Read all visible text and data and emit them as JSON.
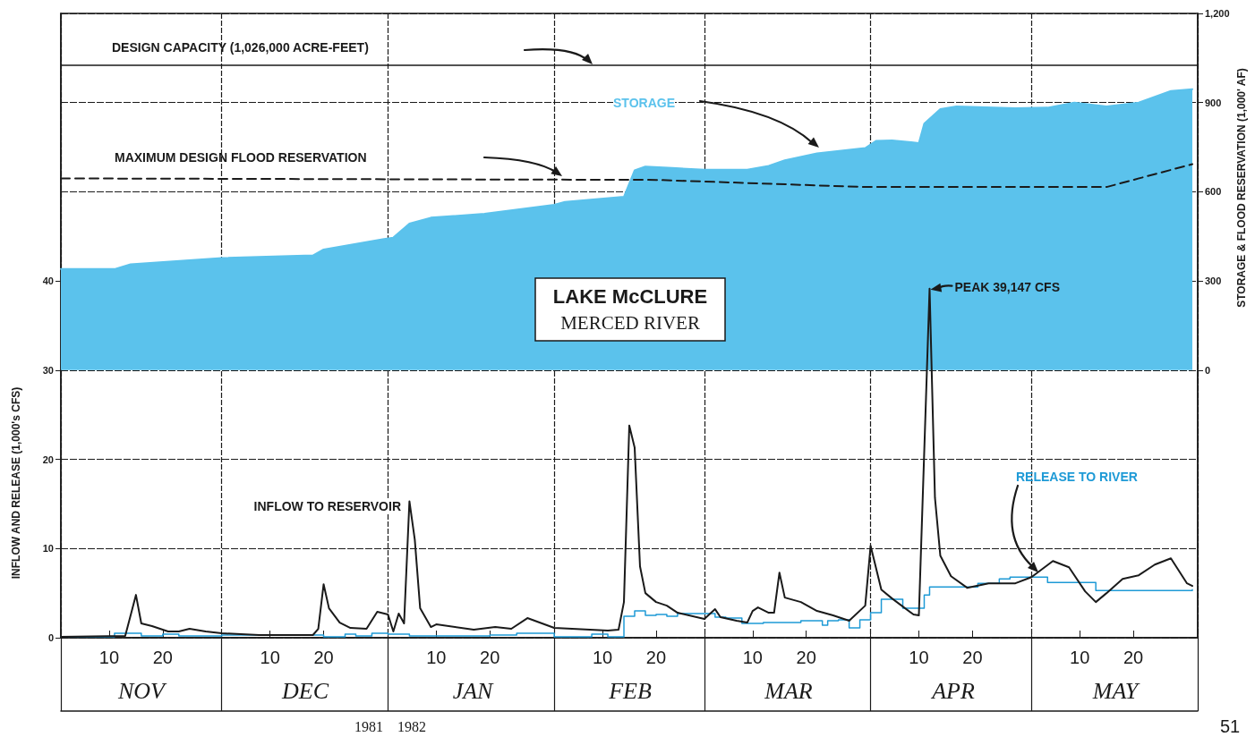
{
  "chart_data": {
    "type": "line",
    "title": "LAKE McCLURE",
    "subtitle": "MERCED RIVER",
    "ylabel": "INFLOW AND RELEASE (1,000's CFS)",
    "y2label": "STORAGE & FLOOD RESERVATION (1,000' AF)",
    "xlim": [
      "1981-11-01",
      "1982-06-01"
    ],
    "xticks": [
      {
        "value": "1981-11-01",
        "label": null
      },
      {
        "value": "1981-11-10",
        "label": "10"
      },
      {
        "value": "1981-11-20",
        "label": "20"
      },
      {
        "value": "1981-12-01",
        "label": null
      },
      {
        "value": "1981-12-10",
        "label": "10"
      },
      {
        "value": "1981-12-20",
        "label": "20"
      },
      {
        "value": "1982-01-01",
        "label": null
      },
      {
        "value": "1982-01-10",
        "label": "10"
      },
      {
        "value": "1982-01-20",
        "label": "20"
      },
      {
        "value": "1982-02-01",
        "label": null
      },
      {
        "value": "1982-02-10",
        "label": "10"
      },
      {
        "value": "1982-02-20",
        "label": "20"
      },
      {
        "value": "1982-03-01",
        "label": null
      },
      {
        "value": "1982-03-10",
        "label": "10"
      },
      {
        "value": "1982-03-20",
        "label": "20"
      },
      {
        "value": "1982-04-01",
        "label": null
      },
      {
        "value": "1982-04-10",
        "label": "10"
      },
      {
        "value": "1982-04-20",
        "label": "20"
      },
      {
        "value": "1982-05-01",
        "label": null
      },
      {
        "value": "1982-05-10",
        "label": "10"
      },
      {
        "value": "1982-05-20",
        "label": "20"
      },
      {
        "value": "1982-06-01",
        "label": null
      }
    ],
    "ylim": [
      0,
      70
    ],
    "yticks": [
      0,
      10,
      20,
      30,
      40
    ],
    "y2lim": [
      -900,
      1200
    ],
    "y2ticks": [
      0,
      300,
      600,
      900,
      {
        "value": 1200,
        "label": "1,200"
      }
    ],
    "grid": true,
    "legend": false,
    "marker": "none",
    "ref_lines": [
      {
        "axis": "y2",
        "value": 1026,
        "label": "DESIGN CAPACITY (1,026,000 ACRE-FEET)",
        "color": "#1a1a1a"
      }
    ],
    "series": [
      {
        "name": "STORAGE",
        "type": "area",
        "axis": "y2",
        "color": "#5bc2ec",
        "x": [
          "1981-11-01",
          "1981-11-11",
          "1981-11-14",
          "1981-12-01",
          "1981-12-18",
          "1981-12-20",
          "1981-12-31",
          "1982-01-02",
          "1982-01-05",
          "1982-01-09",
          "1982-01-19",
          "1982-02-01",
          "1982-02-03",
          "1982-02-14",
          "1982-02-16",
          "1982-02-18",
          "1982-02-23",
          "1982-03-01",
          "1982-03-09",
          "1982-03-13",
          "1982-03-16",
          "1982-03-22",
          "1982-03-31",
          "1982-04-02",
          "1982-04-05",
          "1982-04-10",
          "1982-04-11",
          "1982-04-14",
          "1982-04-17",
          "1982-04-28",
          "1982-05-04",
          "1982-05-09",
          "1982-05-15",
          "1982-05-21",
          "1982-05-27",
          "1982-05-31"
        ],
        "values": [
          340,
          340,
          356,
          377,
          386,
          406,
          440,
          446,
          493,
          513,
          526,
          556,
          566,
          583,
          672,
          685,
          680,
          674,
          674,
          687,
          706,
          729,
          747,
          771,
          773,
          764,
          829,
          878,
          887,
          881,
          883,
          900,
          887,
          900,
          939,
          945
        ]
      },
      {
        "name": "MAXIMUM DESIGN FLOOD RESERVATION",
        "axis": "y2",
        "color": "#1a1a1a",
        "line_style": "dashed",
        "x": [
          "1981-11-01",
          "1982-02-20",
          "1982-03-31",
          "1982-05-15",
          "1982-05-31"
        ],
        "values": [
          645,
          640,
          616,
          616,
          693
        ]
      },
      {
        "name": "RELEASE TO RIVER",
        "type": "step",
        "color": "#1e9ad6",
        "x": [
          "1981-11-01",
          "1981-11-11",
          "1981-11-16",
          "1981-11-20",
          "1981-11-23",
          "1981-12-01",
          "1981-12-20",
          "1981-12-24",
          "1981-12-26",
          "1981-12-29",
          "1982-01-01",
          "1982-01-05",
          "1982-01-20",
          "1982-01-25",
          "1982-02-01",
          "1982-02-08",
          "1982-02-11",
          "1982-02-14",
          "1982-02-16",
          "1982-02-18",
          "1982-02-20",
          "1982-02-22",
          "1982-02-24",
          "1982-03-03",
          "1982-03-05",
          "1982-03-08",
          "1982-03-12",
          "1982-03-19",
          "1982-03-23",
          "1982-03-24",
          "1982-03-26",
          "1982-03-28",
          "1982-03-30",
          "1982-04-01",
          "1982-04-03",
          "1982-04-07",
          "1982-04-11",
          "1982-04-12",
          "1982-04-21",
          "1982-04-25",
          "1982-04-27",
          "1982-05-04",
          "1982-05-13",
          "1982-05-31"
        ],
        "values": [
          0.1,
          0.5,
          0.2,
          0.4,
          0.2,
          0.3,
          0.1,
          0.4,
          0.2,
          0.5,
          0.4,
          0.2,
          0.3,
          0.5,
          0.1,
          0.4,
          0.1,
          2.4,
          3.0,
          2.5,
          2.6,
          2.4,
          2.7,
          2.3,
          2.2,
          1.6,
          1.7,
          1.9,
          1.4,
          1.9,
          2.0,
          1.1,
          2.0,
          2.8,
          4.3,
          3.3,
          4.8,
          5.7,
          6.1,
          6.6,
          6.8,
          6.2,
          5.3,
          5.4
        ]
      },
      {
        "name": "INFLOW TO RESERVOIR",
        "color": "#1a1a1a",
        "x": [
          "1981-11-01",
          "1981-11-13",
          "1981-11-15",
          "1981-11-16",
          "1981-11-18",
          "1981-11-21",
          "1981-11-23",
          "1981-11-25",
          "1981-11-28",
          "1981-12-01",
          "1981-12-08",
          "1981-12-18",
          "1981-12-19",
          "1981-12-20",
          "1981-12-21",
          "1981-12-23",
          "1981-12-25",
          "1981-12-28",
          "1981-12-30",
          "1982-01-01",
          "1982-01-02",
          "1982-01-03",
          "1982-01-04",
          "1982-01-05",
          "1982-01-06",
          "1982-01-07",
          "1982-01-09",
          "1982-01-10",
          "1982-01-17",
          "1982-01-21",
          "1982-01-24",
          "1982-01-27",
          "1982-02-01",
          "1982-02-11",
          "1982-02-13",
          "1982-02-14",
          "1982-02-15",
          "1982-02-16",
          "1982-02-17",
          "1982-02-18",
          "1982-02-20",
          "1982-02-22",
          "1982-02-24",
          "1982-03-01",
          "1982-03-03",
          "1982-03-04",
          "1982-03-07",
          "1982-03-09",
          "1982-03-10",
          "1982-03-11",
          "1982-03-13",
          "1982-03-14",
          "1982-03-15",
          "1982-03-16",
          "1982-03-19",
          "1982-03-22",
          "1982-03-25",
          "1982-03-28",
          "1982-03-31",
          "1982-04-01",
          "1982-04-03",
          "1982-04-05",
          "1982-04-09",
          "1982-04-10",
          "1982-04-12",
          "1982-04-13",
          "1982-04-14",
          "1982-04-16",
          "1982-04-19",
          "1982-04-23",
          "1982-04-28",
          "1982-05-01",
          "1982-05-05",
          "1982-05-08",
          "1982-05-11",
          "1982-05-13",
          "1982-05-15",
          "1982-05-18",
          "1982-05-21",
          "1982-05-24",
          "1982-05-27",
          "1982-05-30",
          "1982-05-31"
        ],
        "values": [
          0.1,
          0.2,
          4.8,
          1.6,
          1.3,
          0.7,
          0.7,
          1.0,
          0.7,
          0.5,
          0.3,
          0.3,
          1.0,
          6.0,
          3.3,
          1.7,
          1.1,
          1.0,
          2.9,
          2.6,
          0.7,
          2.7,
          1.6,
          15.3,
          11,
          3.3,
          1.2,
          1.5,
          0.9,
          1.2,
          1.0,
          2.2,
          1.1,
          0.8,
          0.9,
          4.0,
          23.8,
          21.3,
          8.0,
          5.0,
          4.0,
          3.6,
          2.8,
          2.1,
          3.2,
          2.3,
          1.9,
          1.7,
          3.0,
          3.4,
          2.8,
          2.8,
          7.3,
          4.5,
          4.0,
          3.0,
          2.5,
          1.9,
          3.6,
          10.3,
          5.4,
          4.4,
          2.6,
          2.5,
          39.147,
          15.7,
          9.2,
          6.9,
          5.6,
          6.1,
          6.1,
          6.8,
          8.6,
          7.9,
          5.2,
          4.0,
          5.0,
          6.6,
          7.0,
          8.2,
          8.9,
          6.1,
          5.8
        ]
      }
    ],
    "annotations": [
      {
        "text": "PEAK 39,147 CFS",
        "x": "1982-04-12",
        "y": 39.147
      },
      "NOV",
      "DEC",
      "JAN",
      "FEB",
      "MAR",
      "APR",
      "MAY",
      "1981",
      "1982",
      "51"
    ]
  }
}
